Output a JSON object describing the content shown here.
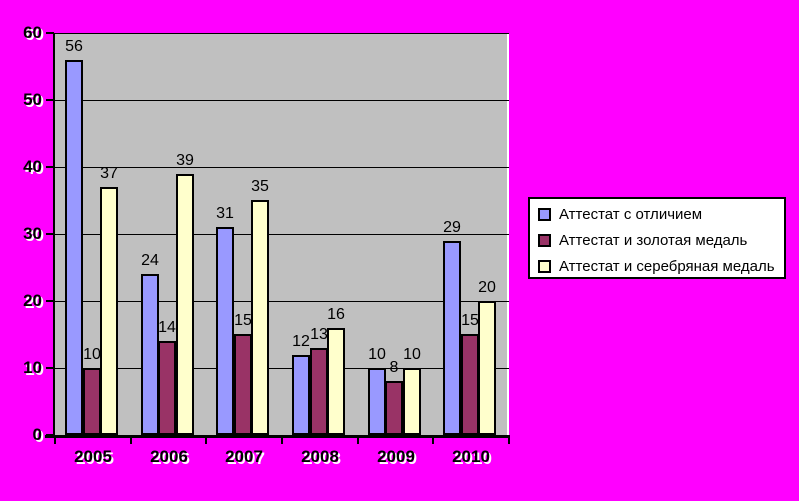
{
  "page": {
    "background_color": "#FF00FF"
  },
  "colors": {
    "plot_background": "#C0C0C0",
    "axis": "#000000",
    "gridline": "#000000",
    "label_text": "#000000",
    "label_shadow": "#FFFFFF",
    "legend_background": "#FFFFFF"
  },
  "chart_data": {
    "type": "bar",
    "title": "",
    "xlabel": "",
    "ylabel": "",
    "categories": [
      "2005",
      "2006",
      "2007",
      "2008",
      "2009",
      "2010"
    ],
    "series": [
      {
        "name": "Аттестат с отличием",
        "color": "#9999FF",
        "values": [
          56,
          24,
          31,
          12,
          10,
          29
        ]
      },
      {
        "name": "Аттестат и золотая медаль",
        "color": "#993366",
        "values": [
          10,
          14,
          15,
          13,
          8,
          15
        ]
      },
      {
        "name": "Аттестат и серебряная медаль",
        "color": "#FFFFCC",
        "values": [
          37,
          39,
          35,
          16,
          10,
          20
        ]
      }
    ],
    "ylim": [
      0,
      60
    ],
    "ytick_step": 10,
    "ytick_labels": [
      "0",
      "10",
      "20",
      "30",
      "40",
      "50",
      "60"
    ],
    "grid": true,
    "data_labels": true,
    "legend_position": "right"
  }
}
